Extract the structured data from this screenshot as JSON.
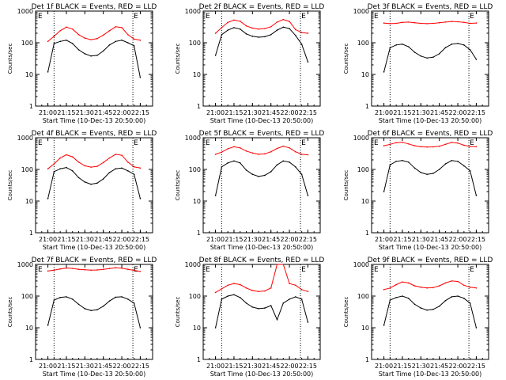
{
  "common": {
    "ylabel": "Counts/sec",
    "xlabel": "Start Time (10-Dec-13 20:50:00)",
    "x_ticks": [
      "21:00",
      "21:15",
      "21:30",
      "21:45",
      "22:00",
      "22:15"
    ],
    "x_range": [
      "20:50",
      "22:25"
    ],
    "y_ticks": [
      "1",
      "10",
      "100",
      "1000"
    ],
    "y_range": [
      1,
      1000
    ],
    "y_scale": "log",
    "colors": {
      "events": "#000000",
      "lld": "#ff0000",
      "axis": "#000000"
    }
  },
  "chart_data": [
    {
      "type": "line",
      "title": "Det 1f BLACK = Events, RED = LLD",
      "corner_marks": [
        "E",
        "E"
      ],
      "vlines": [
        "21:05",
        "22:09"
      ],
      "x": [
        "21:00",
        "21:05",
        "21:10",
        "21:15",
        "21:20",
        "21:25",
        "21:30",
        "21:35",
        "21:40",
        "21:45",
        "21:50",
        "21:55",
        "22:00",
        "22:05",
        "22:10",
        "22:15"
      ],
      "series": [
        {
          "name": "Events",
          "values": [
            12,
            95,
            110,
            120,
            95,
            60,
            45,
            38,
            40,
            55,
            85,
            110,
            120,
            100,
            80,
            8
          ]
        },
        {
          "name": "LLD",
          "values": [
            110,
            160,
            240,
            310,
            270,
            180,
            140,
            125,
            135,
            175,
            240,
            320,
            300,
            180,
            130,
            120
          ]
        }
      ]
    },
    {
      "type": "line",
      "title": "Det 2f BLACK = Events, RED = LLD",
      "corner_marks": [
        "E",
        "E"
      ],
      "vlines": [
        "21:05",
        "22:09"
      ],
      "x": [
        "21:00",
        "21:05",
        "21:10",
        "21:15",
        "21:20",
        "21:25",
        "21:30",
        "21:35",
        "21:40",
        "21:45",
        "21:50",
        "21:55",
        "22:00",
        "22:05",
        "22:10",
        "22:15"
      ],
      "series": [
        {
          "name": "Events",
          "values": [
            40,
            180,
            250,
            300,
            270,
            190,
            160,
            150,
            155,
            180,
            250,
            310,
            280,
            170,
            90,
            25
          ]
        },
        {
          "name": "LLD",
          "values": [
            200,
            300,
            440,
            520,
            480,
            340,
            290,
            270,
            280,
            320,
            450,
            540,
            470,
            260,
            210,
            200
          ]
        }
      ]
    },
    {
      "type": "line",
      "title": "Det 3f BLACK = Events, RED = LLD",
      "corner_marks": [
        "E",
        "E"
      ],
      "vlines": [
        "21:05",
        "22:09"
      ],
      "x": [
        "21:00",
        "21:05",
        "21:10",
        "21:15",
        "21:20",
        "21:25",
        "21:30",
        "21:35",
        "21:40",
        "21:45",
        "21:50",
        "21:55",
        "22:00",
        "22:05",
        "22:10",
        "22:15"
      ],
      "series": [
        {
          "name": "Events",
          "values": [
            12,
            70,
            85,
            90,
            75,
            50,
            38,
            33,
            35,
            45,
            70,
            90,
            95,
            85,
            60,
            30
          ]
        },
        {
          "name": "LLD",
          "values": [
            420,
            400,
            410,
            440,
            450,
            430,
            410,
            400,
            410,
            430,
            450,
            470,
            460,
            440,
            410,
            420
          ]
        }
      ]
    },
    {
      "type": "line",
      "title": "Det 4f BLACK = Events, RED = LLD",
      "corner_marks": [
        "E",
        "E"
      ],
      "vlines": [
        "21:05",
        "22:09"
      ],
      "x": [
        "21:00",
        "21:05",
        "21:10",
        "21:15",
        "21:20",
        "21:25",
        "21:30",
        "21:35",
        "21:40",
        "21:45",
        "21:50",
        "21:55",
        "22:00",
        "22:05",
        "22:10",
        "22:15"
      ],
      "series": [
        {
          "name": "Events",
          "values": [
            12,
            85,
            105,
            115,
            90,
            55,
            40,
            34,
            37,
            50,
            80,
            105,
            110,
            90,
            70,
            12
          ]
        },
        {
          "name": "LLD",
          "values": [
            105,
            150,
            230,
            290,
            250,
            170,
            130,
            118,
            125,
            165,
            230,
            300,
            280,
            170,
            120,
            110
          ]
        }
      ]
    },
    {
      "type": "line",
      "title": "Det 5f BLACK = Events, RED = LLD",
      "corner_marks": [
        "E",
        "E"
      ],
      "vlines": [
        "21:05",
        "22:09"
      ],
      "x": [
        "21:00",
        "21:05",
        "21:10",
        "21:15",
        "21:20",
        "21:25",
        "21:30",
        "21:35",
        "21:40",
        "21:45",
        "21:50",
        "21:55",
        "22:00",
        "22:05",
        "22:10",
        "22:15"
      ],
      "series": [
        {
          "name": "Events",
          "values": [
            15,
            120,
            160,
            185,
            160,
            95,
            70,
            60,
            65,
            85,
            140,
            185,
            170,
            120,
            70,
            15
          ]
        },
        {
          "name": "LLD",
          "values": [
            300,
            350,
            450,
            520,
            480,
            380,
            330,
            300,
            310,
            360,
            460,
            540,
            480,
            360,
            300,
            290
          ]
        }
      ]
    },
    {
      "type": "line",
      "title": "Det 6f BLACK = Events, RED = LLD",
      "corner_marks": [
        "E",
        "E"
      ],
      "vlines": [
        "21:05",
        "22:09"
      ],
      "x": [
        "21:00",
        "21:05",
        "21:10",
        "21:15",
        "21:20",
        "21:25",
        "21:30",
        "21:35",
        "21:40",
        "21:45",
        "21:50",
        "21:55",
        "22:00",
        "22:05",
        "22:10",
        "22:15"
      ],
      "series": [
        {
          "name": "Events",
          "values": [
            20,
            140,
            180,
            190,
            170,
            110,
            80,
            70,
            75,
            100,
            150,
            190,
            180,
            130,
            90,
            15
          ]
        },
        {
          "name": "LLD",
          "values": [
            560,
            620,
            700,
            720,
            640,
            560,
            520,
            510,
            515,
            540,
            620,
            710,
            680,
            580,
            530,
            520
          ]
        }
      ]
    },
    {
      "type": "line",
      "title": "Det 7f BLACK = Events, RED = LLD",
      "corner_marks": [
        "E",
        "E"
      ],
      "vlines": [
        "21:05",
        "22:09"
      ],
      "x": [
        "21:00",
        "21:05",
        "21:10",
        "21:15",
        "21:20",
        "21:25",
        "21:30",
        "21:35",
        "21:40",
        "21:45",
        "21:50",
        "21:55",
        "22:00",
        "22:05",
        "22:10",
        "22:15"
      ],
      "series": [
        {
          "name": "Events",
          "values": [
            12,
            75,
            90,
            95,
            80,
            55,
            40,
            35,
            37,
            48,
            70,
            92,
            95,
            80,
            60,
            10
          ]
        },
        {
          "name": "LLD",
          "values": [
            620,
            660,
            720,
            770,
            750,
            700,
            680,
            660,
            670,
            700,
            740,
            790,
            760,
            700,
            650,
            600
          ]
        }
      ]
    },
    {
      "type": "line",
      "title": "Det 8f BLACK = Events, RED = LLD",
      "corner_marks": [
        "E",
        "E"
      ],
      "vlines": [
        "21:05",
        "22:09"
      ],
      "x": [
        "21:00",
        "21:05",
        "21:10",
        "21:15",
        "21:20",
        "21:25",
        "21:30",
        "21:35",
        "21:40",
        "21:45",
        "21:50",
        "21:55",
        "22:00",
        "22:05",
        "22:10",
        "22:15"
      ],
      "series": [
        {
          "name": "Events",
          "values": [
            10,
            80,
            100,
            110,
            90,
            60,
            45,
            40,
            42,
            50,
            18,
            60,
            80,
            95,
            80,
            15
          ]
        },
        {
          "name": "LLD",
          "values": [
            130,
            170,
            220,
            250,
            230,
            180,
            150,
            140,
            145,
            180,
            1000,
            1000,
            250,
            220,
            160,
            140
          ]
        }
      ]
    },
    {
      "type": "line",
      "title": "Det 9f BLACK = Events, RED = LLD",
      "corner_marks": [
        "E",
        "E"
      ],
      "vlines": [
        "21:05",
        "22:09"
      ],
      "x": [
        "21:00",
        "21:05",
        "21:10",
        "21:15",
        "21:20",
        "21:25",
        "21:30",
        "21:35",
        "21:40",
        "21:45",
        "21:50",
        "21:55",
        "22:00",
        "22:05",
        "22:10",
        "22:15"
      ],
      "series": [
        {
          "name": "Events",
          "values": [
            12,
            75,
            90,
            100,
            85,
            55,
            42,
            36,
            38,
            48,
            72,
            95,
            100,
            85,
            60,
            10
          ]
        },
        {
          "name": "LLD",
          "values": [
            160,
            180,
            230,
            280,
            260,
            210,
            190,
            180,
            185,
            210,
            260,
            300,
            290,
            220,
            190,
            180
          ]
        }
      ]
    }
  ]
}
